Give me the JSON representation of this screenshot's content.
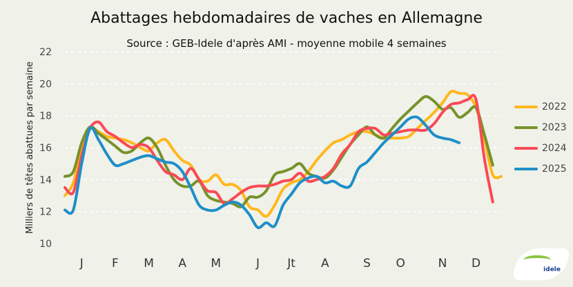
{
  "chart_data": {
    "type": "line",
    "title": "Abattages hebdomadaires de vaches en Allemagne",
    "subtitle": "Source : GEB-Idele d'après AMI - moyenne mobile 4 semaines",
    "xlabel": "",
    "ylabel": "Milliers de têtes abattues par semaine",
    "ylim": [
      10,
      22
    ],
    "yticks": [
      10,
      12,
      14,
      16,
      18,
      20,
      22
    ],
    "xlim": [
      1,
      53
    ],
    "x_ticks": [
      {
        "label": "J",
        "week": 3
      },
      {
        "label": "F",
        "week": 7
      },
      {
        "label": "M",
        "week": 11
      },
      {
        "label": "A",
        "week": 15
      },
      {
        "label": "M",
        "week": 19
      },
      {
        "label": "J",
        "week": 24
      },
      {
        "label": "Jt",
        "week": 28
      },
      {
        "label": "A",
        "week": 32
      },
      {
        "label": "S",
        "week": 37
      },
      {
        "label": "O",
        "week": 41
      },
      {
        "label": "N",
        "week": 46
      },
      {
        "label": "D",
        "week": 50
      }
    ],
    "grid": "horizontal dashed",
    "legend": "right",
    "series": [
      {
        "name": "2022",
        "color": "#ffb81c",
        "values": [
          13.0,
          13.8,
          16.0,
          17.2,
          17.0,
          16.7,
          16.6,
          16.5,
          16.3,
          16.0,
          15.8,
          16.3,
          16.5,
          15.8,
          15.2,
          14.9,
          14.0,
          13.9,
          14.3,
          13.7,
          13.7,
          13.3,
          12.3,
          12.1,
          11.7,
          12.4,
          13.4,
          13.8,
          14.0,
          14.5,
          15.2,
          15.8,
          16.3,
          16.5,
          16.8,
          17.0,
          17.0,
          16.8,
          16.6,
          16.6,
          16.6,
          16.7,
          17.2,
          17.7,
          18.2,
          18.8,
          19.5,
          19.4,
          19.3,
          18.5,
          16.5,
          14.3,
          14.2
        ]
      },
      {
        "name": "2023",
        "color": "#76922a",
        "values": [
          14.2,
          14.5,
          16.3,
          17.3,
          16.9,
          16.5,
          16.1,
          15.7,
          15.8,
          16.3,
          16.6,
          16.0,
          14.9,
          14.0,
          13.6,
          13.6,
          13.9,
          13.0,
          12.7,
          12.6,
          12.5,
          12.3,
          12.9,
          12.9,
          13.3,
          14.3,
          14.5,
          14.7,
          15.0,
          14.4,
          14.2,
          14.1,
          14.6,
          15.4,
          16.2,
          16.8,
          17.3,
          16.8,
          16.6,
          17.2,
          17.8,
          18.3,
          18.8,
          19.2,
          18.9,
          18.4,
          18.5,
          17.9,
          18.2,
          18.5,
          16.8,
          14.9
        ]
      },
      {
        "name": "2024",
        "color": "#f94a55",
        "values": [
          13.5,
          13.2,
          15.5,
          17.2,
          17.6,
          17.0,
          16.7,
          16.3,
          16.0,
          16.2,
          16.0,
          15.2,
          14.5,
          14.3,
          14.0,
          14.7,
          14.0,
          13.3,
          13.2,
          12.5,
          12.8,
          13.2,
          13.5,
          13.6,
          13.6,
          13.7,
          13.9,
          14.0,
          14.4,
          13.9,
          14.0,
          14.2,
          14.7,
          15.6,
          16.2,
          17.0,
          17.2,
          17.2,
          16.8,
          16.9,
          17.0,
          17.1,
          17.1,
          17.1,
          17.5,
          18.2,
          18.7,
          18.8,
          19.0,
          19.0,
          15.3,
          12.6
        ]
      },
      {
        "name": "2025",
        "color": "#1e8fc9",
        "values": [
          12.1,
          12.1,
          15.0,
          17.2,
          16.5,
          15.6,
          14.9,
          15.0,
          15.2,
          15.4,
          15.5,
          15.3,
          15.1,
          15.0,
          14.5,
          13.5,
          12.4,
          12.1,
          12.1,
          12.4,
          12.6,
          12.4,
          11.8,
          11.0,
          11.3,
          11.1,
          12.4,
          13.1,
          13.8,
          14.1,
          14.2,
          13.8,
          13.9,
          13.6,
          13.6,
          14.7,
          15.1,
          15.7,
          16.3,
          16.8,
          17.3,
          17.8,
          17.9,
          17.4,
          16.8,
          16.6,
          16.5,
          16.3
        ]
      }
    ]
  },
  "logo": {
    "text": "idele",
    "subtext": "INSTITUT DE L'ÉLEVAGE"
  }
}
